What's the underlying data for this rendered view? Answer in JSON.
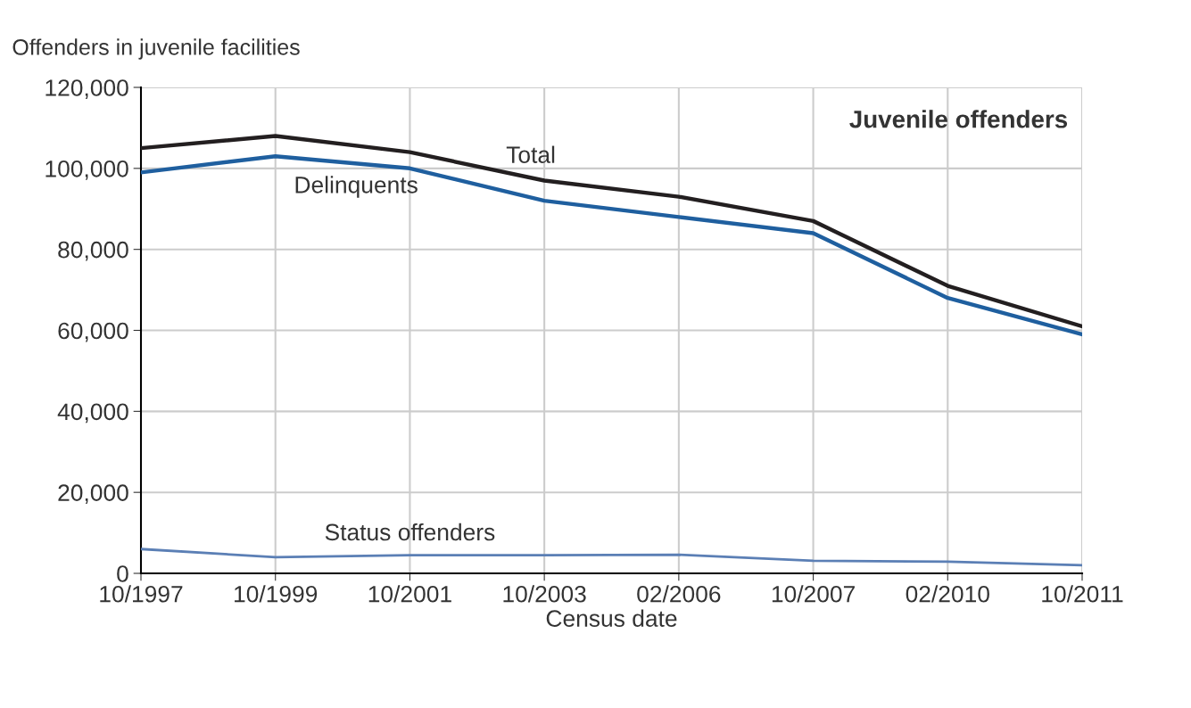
{
  "chart_data": {
    "type": "line",
    "title": "Juvenile offenders",
    "ylabel": "Offenders in juvenile facilities",
    "xlabel": "Census date",
    "categories": [
      "10/1997",
      "10/1999",
      "10/2001",
      "10/2003",
      "02/2006",
      "10/2007",
      "02/2010",
      "10/2011"
    ],
    "series": [
      {
        "name": "Total",
        "color": "#231f20",
        "values": [
          105000,
          108000,
          104000,
          97000,
          93000,
          87000,
          71000,
          61000
        ]
      },
      {
        "name": "Delinquents",
        "color": "#1f5f9f",
        "values": [
          99000,
          103000,
          100000,
          92000,
          88000,
          84000,
          68000,
          59000
        ]
      },
      {
        "name": "Status offenders",
        "color": "#5b7fb5",
        "values": [
          6000,
          4000,
          4500,
          4500,
          4600,
          3100,
          2900,
          2000
        ]
      }
    ],
    "ylim": [
      0,
      120000
    ],
    "yticks": [
      {
        "value": 0,
        "label": "0"
      },
      {
        "value": 20000,
        "label": "20,000"
      },
      {
        "value": 40000,
        "label": "40,000"
      },
      {
        "value": 60000,
        "label": "60,000"
      },
      {
        "value": 80000,
        "label": "80,000"
      },
      {
        "value": 100000,
        "label": "100,000"
      },
      {
        "value": 120000,
        "label": "120,000"
      }
    ],
    "grid": true,
    "legend": false,
    "marker": "none",
    "line_style": "solid"
  }
}
